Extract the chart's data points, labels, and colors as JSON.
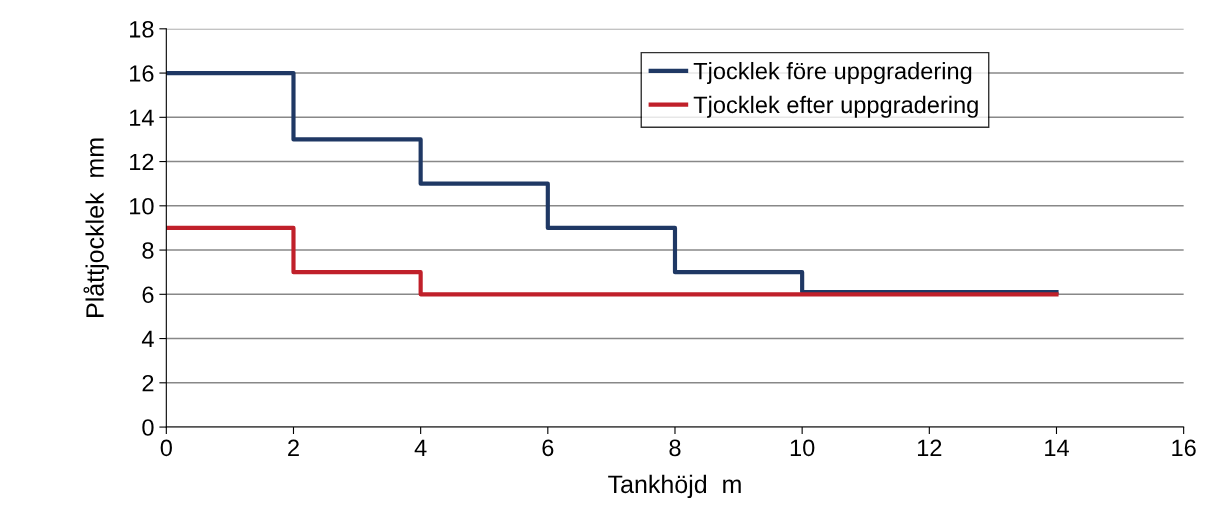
{
  "chart_data": {
    "type": "step",
    "xlabel": "Tankhöjd  m",
    "ylabel": "Plåttjocklek  mm",
    "series": [
      {
        "name": "Tjocklek före uppgradering",
        "color": "#1f3864",
        "x": [
          0,
          2,
          4,
          6,
          8,
          10,
          14
        ],
        "values": [
          16,
          13,
          11,
          9,
          7,
          6.1,
          6.1
        ]
      },
      {
        "name": "Tjocklek efter uppgradering",
        "color": "#c0202a",
        "x": [
          0,
          2,
          4,
          14
        ],
        "values": [
          9,
          7,
          6,
          6
        ]
      }
    ],
    "xlim": [
      0,
      16
    ],
    "xticks": [
      0,
      2,
      4,
      6,
      8,
      10,
      12,
      14,
      16
    ],
    "ylim": [
      0,
      18
    ],
    "yticks": [
      0,
      2,
      4,
      6,
      8,
      10,
      12,
      14,
      16,
      18
    ],
    "grid": "y",
    "legend": "top right",
    "line_style": "solid",
    "marker": "none"
  }
}
